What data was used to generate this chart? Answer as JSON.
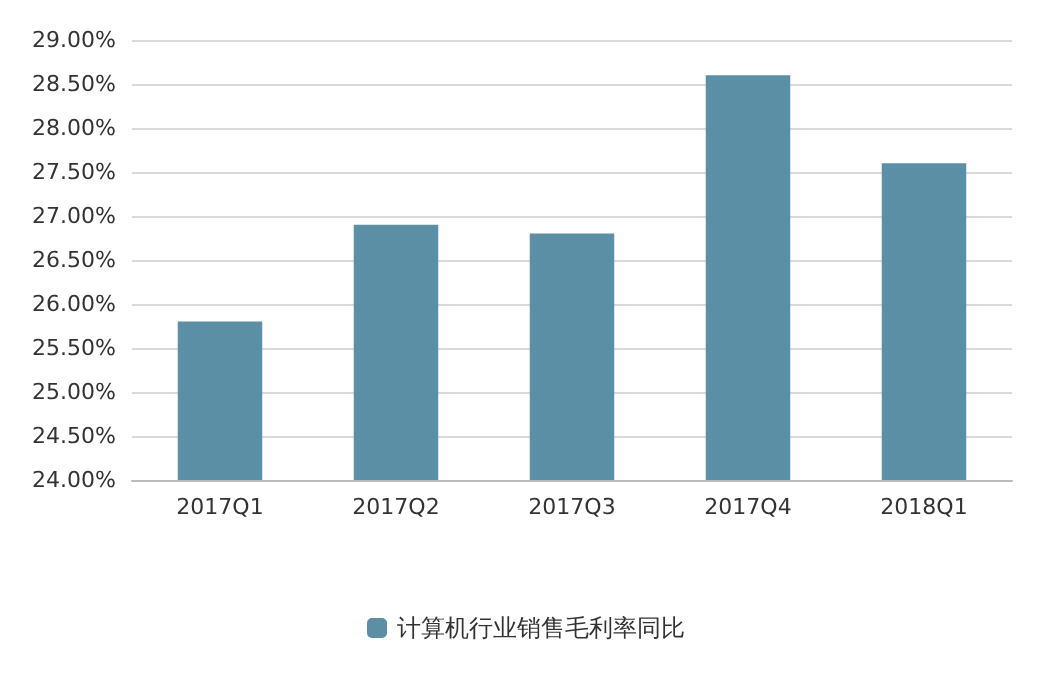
{
  "chart_data": {
    "type": "bar",
    "categories": [
      "2017Q1",
      "2017Q2",
      "2017Q3",
      "2017Q4",
      "2018Q1"
    ],
    "series": [
      {
        "name": "计算机行业销售毛利率同比",
        "color": "#5b8fa5",
        "values": [
          25.8,
          26.9,
          26.8,
          28.6,
          27.6
        ]
      }
    ],
    "ylim": [
      24,
      29
    ],
    "yticks": [
      {
        "value": 24,
        "label": "24.00%"
      },
      {
        "value": 24.5,
        "label": "24.50%"
      },
      {
        "value": 25,
        "label": "25.00%"
      },
      {
        "value": 25.5,
        "label": "25.50%"
      },
      {
        "value": 26,
        "label": "26.00%"
      },
      {
        "value": 26.5,
        "label": "26.50%"
      },
      {
        "value": 27,
        "label": "27.00%"
      },
      {
        "value": 27.5,
        "label": "27.50%"
      },
      {
        "value": 28,
        "label": "28.00%"
      },
      {
        "value": 28.5,
        "label": "28.50%"
      },
      {
        "value": 29,
        "label": "29.00%"
      }
    ],
    "grid": "y",
    "legend": "bottom"
  }
}
